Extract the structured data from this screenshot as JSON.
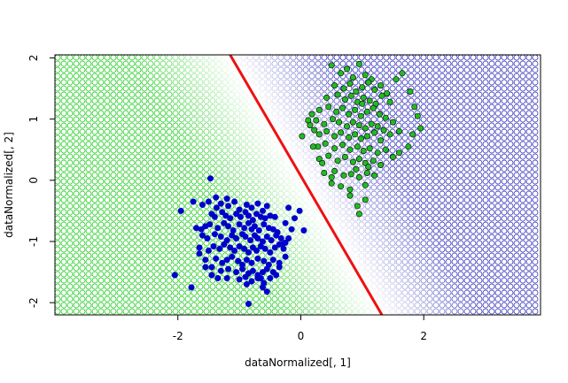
{
  "chart_data": {
    "type": "scatter",
    "title": "",
    "xlabel": "dataNormalized[, 1]",
    "ylabel": "dataNormalized[, 2]",
    "xlim": [
      -4,
      3.9
    ],
    "ylim": [
      -2.2,
      2.05
    ],
    "x_ticks": [
      -2,
      0,
      2
    ],
    "y_ticks": [
      -2,
      -1,
      0,
      1,
      2
    ],
    "x_tick_labels": [
      "-2",
      "0",
      "2"
    ],
    "y_tick_labels": [
      "-2",
      "-1",
      "0",
      "1",
      "2"
    ],
    "grid": false,
    "legend": "none",
    "background": {
      "kind": "decision-region-grid",
      "marker": "open-circle",
      "class_colors": {
        "blue": "#3333bb",
        "green": "#22cc22"
      },
      "transition_width": 1.4
    },
    "decision_boundary": {
      "color": "#ee1111",
      "points": [
        [
          -1.15,
          2.05
        ],
        [
          1.32,
          -2.2
        ]
      ]
    },
    "series": [
      {
        "class": "blue",
        "fill": "#0000cc",
        "x": [
          -1.47,
          -1.5,
          -1.6,
          -1.38,
          -1.37,
          -1.3,
          -1.2,
          -1.18,
          -1.08,
          -1.0,
          -0.88,
          -0.8,
          -0.7,
          -0.62,
          -0.55,
          -1.45,
          -1.4,
          -1.28,
          -1.22,
          -1.15,
          -1.05,
          -0.98,
          -0.9,
          -0.85,
          -0.78,
          -0.72,
          -0.65,
          -0.58,
          -0.5,
          -0.42,
          -1.55,
          -1.62,
          -1.48,
          -1.35,
          -1.25,
          -1.18,
          -1.1,
          -1.0,
          -0.92,
          -0.85,
          -0.8,
          -0.75,
          -0.68,
          -0.6,
          -0.52,
          -0.45,
          -0.38,
          -1.6,
          -1.52,
          -1.4,
          -1.3,
          -1.2,
          -1.12,
          -1.05,
          -0.95,
          -0.9,
          -0.82,
          -0.75,
          -0.7,
          -0.62,
          -0.55,
          -0.48,
          -0.4,
          -0.32,
          -0.25,
          -1.65,
          -1.5,
          -1.42,
          -1.32,
          -1.25,
          -1.15,
          -1.08,
          -1.0,
          -0.92,
          -0.85,
          -0.78,
          -0.72,
          -0.65,
          -0.58,
          -0.5,
          -0.42,
          -0.35,
          -0.28,
          -1.55,
          -1.38,
          -1.28,
          -1.2,
          -1.12,
          -1.02,
          -0.95,
          -0.88,
          -0.8,
          -0.7,
          -0.6,
          -0.52,
          -0.45,
          -0.35,
          -0.25,
          -1.45,
          -1.3,
          -1.18,
          -1.05,
          -0.95,
          -0.85,
          -0.78,
          -0.7,
          -0.62,
          -0.55,
          -0.45,
          -0.35,
          -1.2,
          -1.0,
          -0.9,
          -0.8,
          -0.7,
          -0.6,
          -0.5,
          -0.4,
          -2.05,
          -1.95,
          -1.75,
          -1.7,
          -1.65,
          -1.55,
          -1.45,
          -1.78,
          -1.35,
          -0.85,
          -0.62,
          -0.55,
          -0.65,
          -0.88,
          -0.2,
          0.05,
          -0.02,
          -0.1,
          -0.15,
          -0.25,
          -0.2,
          -0.3
        ],
        "y": [
          0.03,
          -0.35,
          -0.4,
          -0.28,
          -0.45,
          -0.38,
          -0.3,
          -0.42,
          -0.35,
          -0.48,
          -0.4,
          -0.45,
          -0.38,
          -0.5,
          -0.42,
          -0.55,
          -0.6,
          -0.52,
          -0.58,
          -0.62,
          -0.55,
          -0.6,
          -0.52,
          -0.58,
          -0.65,
          -0.55,
          -0.6,
          -0.62,
          -0.58,
          -0.6,
          -0.75,
          -0.8,
          -0.72,
          -0.78,
          -0.7,
          -0.75,
          -0.82,
          -0.72,
          -0.78,
          -0.7,
          -0.8,
          -0.75,
          -0.82,
          -0.72,
          -0.78,
          -0.8,
          -0.85,
          -0.9,
          -0.95,
          -0.88,
          -0.92,
          -0.98,
          -0.9,
          -0.95,
          -0.88,
          -0.92,
          -0.98,
          -0.9,
          -0.95,
          -1.0,
          -0.92,
          -0.98,
          -0.9,
          -0.95,
          -1.02,
          -1.1,
          -1.15,
          -1.08,
          -1.12,
          -1.05,
          -1.1,
          -1.15,
          -1.08,
          -1.12,
          -1.18,
          -1.1,
          -1.15,
          -1.08,
          -1.12,
          -1.18,
          -1.1,
          -1.05,
          -1.12,
          -1.3,
          -1.28,
          -1.35,
          -1.3,
          -1.25,
          -1.32,
          -1.38,
          -1.3,
          -1.35,
          -1.28,
          -1.32,
          -1.38,
          -1.3,
          -1.35,
          -1.25,
          -1.42,
          -1.48,
          -1.45,
          -1.5,
          -1.45,
          -1.52,
          -1.48,
          -1.55,
          -1.5,
          -1.45,
          -1.5,
          -1.42,
          -1.6,
          -1.62,
          -1.58,
          -1.65,
          -1.6,
          -1.68,
          -1.6,
          -1.55,
          -1.55,
          -0.5,
          -0.35,
          -0.78,
          -1.2,
          -1.42,
          -1.55,
          -1.75,
          -1.6,
          -2.02,
          -1.75,
          -1.82,
          -1.6,
          -1.7,
          -0.45,
          -0.82,
          -0.5,
          -0.62,
          -0.8,
          -0.7,
          -0.95,
          -1.05
        ],
        "marker": "filled-circle"
      },
      {
        "class": "green",
        "fill": "#22bb22",
        "x": [
          0.5,
          0.65,
          0.75,
          0.85,
          0.95,
          1.05,
          1.15,
          0.55,
          0.7,
          0.8,
          0.9,
          1.0,
          1.1,
          1.2,
          1.3,
          1.4,
          0.42,
          0.6,
          0.72,
          0.82,
          0.92,
          1.02,
          1.12,
          1.22,
          1.32,
          1.45,
          0.3,
          0.45,
          0.58,
          0.68,
          0.78,
          0.88,
          0.98,
          1.08,
          1.18,
          1.28,
          1.38,
          0.25,
          0.38,
          0.52,
          0.62,
          0.75,
          0.85,
          0.95,
          1.05,
          1.15,
          1.25,
          1.35,
          1.5,
          0.3,
          0.42,
          0.55,
          0.65,
          0.78,
          0.88,
          0.98,
          1.08,
          1.2,
          1.3,
          1.45,
          1.6,
          0.28,
          0.4,
          0.55,
          0.68,
          0.8,
          0.92,
          1.02,
          1.12,
          1.25,
          1.38,
          0.3,
          0.45,
          0.6,
          0.72,
          0.85,
          0.95,
          1.05,
          1.18,
          1.3,
          0.38,
          0.55,
          0.7,
          0.82,
          0.95,
          1.08,
          1.2,
          0.5,
          0.65,
          0.8,
          0.92,
          1.05,
          0.8,
          0.95,
          1.05,
          0.9,
          1.1,
          1.0,
          1.55,
          1.65,
          1.78,
          1.85,
          1.9,
          1.95,
          1.82,
          1.75,
          1.6,
          1.5,
          0.02,
          0.12,
          0.18,
          0.22,
          0.15,
          0.2,
          0.35,
          0.5
        ],
        "y": [
          1.88,
          1.75,
          1.82,
          1.68,
          1.9,
          1.72,
          1.65,
          1.55,
          1.5,
          1.58,
          1.45,
          1.52,
          1.6,
          1.48,
          1.55,
          1.42,
          1.35,
          1.4,
          1.32,
          1.38,
          1.28,
          1.35,
          1.3,
          1.25,
          1.38,
          1.28,
          1.15,
          1.2,
          1.12,
          1.18,
          1.08,
          1.15,
          1.05,
          1.12,
          1.18,
          1.08,
          1.02,
          0.98,
          0.92,
          1.0,
          0.95,
          0.88,
          0.95,
          0.9,
          0.85,
          0.92,
          0.88,
          0.82,
          0.95,
          0.75,
          0.8,
          0.72,
          0.78,
          0.7,
          0.75,
          0.68,
          0.72,
          0.78,
          0.65,
          0.75,
          0.8,
          0.55,
          0.6,
          0.52,
          0.58,
          0.5,
          0.55,
          0.48,
          0.52,
          0.45,
          0.5,
          0.35,
          0.4,
          0.32,
          0.38,
          0.3,
          0.35,
          0.28,
          0.32,
          0.25,
          0.12,
          0.15,
          0.08,
          0.1,
          0.05,
          0.12,
          0.08,
          -0.05,
          -0.1,
          -0.25,
          -0.42,
          -0.32,
          -0.15,
          -0.55,
          -0.08,
          0.18,
          0.22,
          1.25,
          1.65,
          1.75,
          1.45,
          1.2,
          1.05,
          0.85,
          0.75,
          0.55,
          0.45,
          0.38,
          0.72,
          0.98,
          1.08,
          0.82,
          0.9,
          0.55,
          0.28,
          0.05
        ],
        "marker": "filled-circle"
      }
    ]
  }
}
